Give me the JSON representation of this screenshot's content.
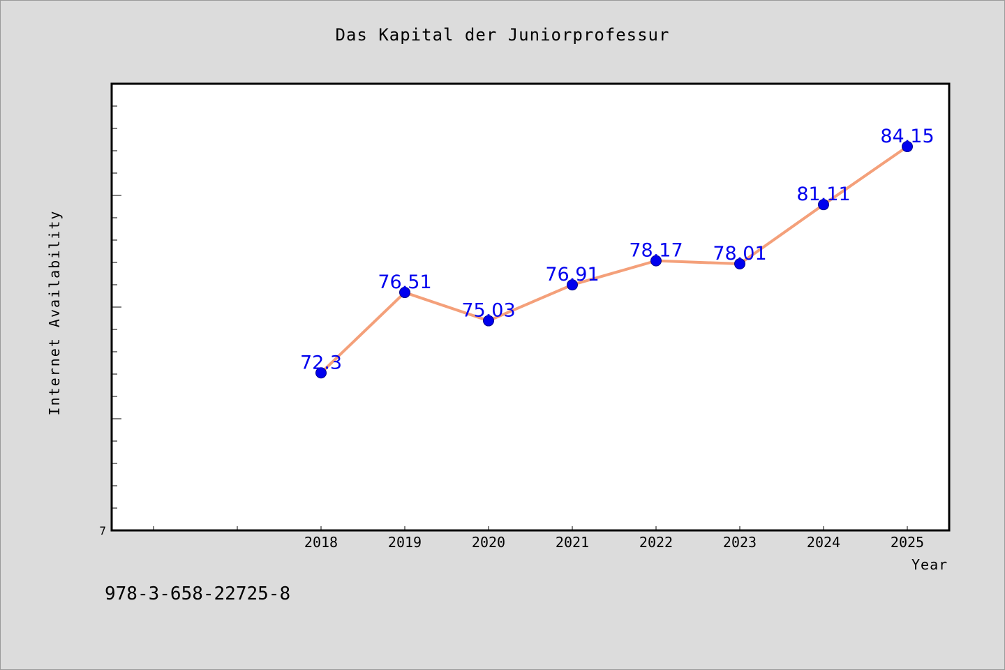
{
  "chart_data": {
    "type": "line",
    "title": "Das Kapital der Juniorprofessur",
    "xlabel": "Year",
    "ylabel": "Internet Availability",
    "x": [
      "2018",
      "2019",
      "2020",
      "2021",
      "2022",
      "2023",
      "2024",
      "2025"
    ],
    "series": [
      {
        "values": [
          72.3,
          76.51,
          75.03,
          76.91,
          78.17,
          78.01,
          81.11,
          84.15
        ],
        "data_labels": [
          "72.3",
          "76.51",
          "75.03",
          "76.91",
          "78.17",
          "78.01",
          "81.11",
          "84.15"
        ],
        "line_color": "#f4a07a",
        "marker_color": "#0000ee",
        "label_color": "#0000ee"
      }
    ],
    "yticks": [
      "7"
    ],
    "ylim": [
      64.05,
      84.15
    ],
    "x_slots": 10,
    "grid": false,
    "legend": "none"
  },
  "footer": {
    "isbn": "978-3-658-22725-8"
  }
}
